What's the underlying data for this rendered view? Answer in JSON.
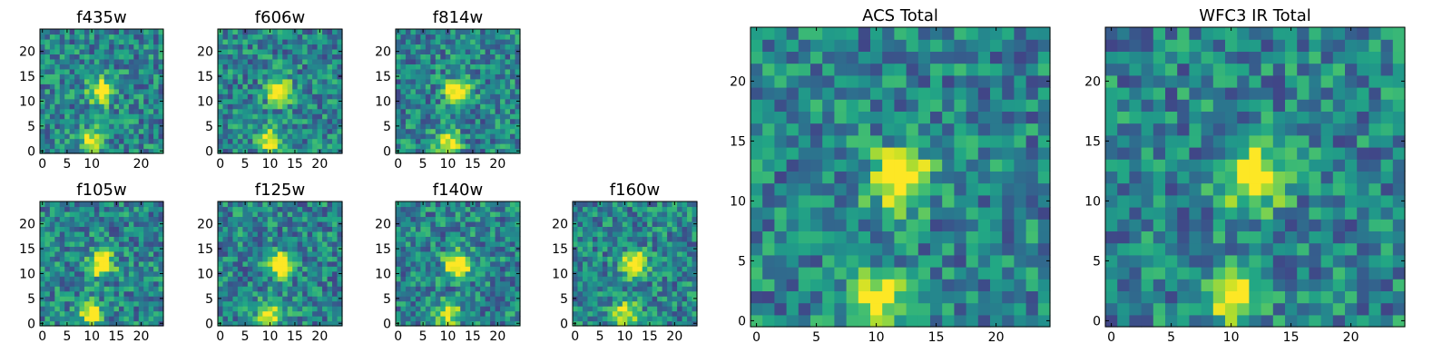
{
  "chart_data": [
    {
      "type": "heatmap",
      "title": "f435w",
      "xlim": [
        0,
        24
      ],
      "ylim": [
        0,
        24
      ],
      "xticks": [
        "0",
        "5",
        "10",
        "20"
      ],
      "yticks": [
        "0",
        "5",
        "10",
        "15",
        "20"
      ],
      "colormap": "viridis",
      "grid": false,
      "sources": [
        {
          "x": 12,
          "y": 12,
          "amplitude": 0.8
        },
        {
          "x": 10,
          "y": 2,
          "amplitude": 0.6
        }
      ]
    },
    {
      "type": "heatmap",
      "title": "f606w",
      "xlim": [
        0,
        24
      ],
      "ylim": [
        0,
        24
      ],
      "xticks": [
        "0",
        "5",
        "10",
        "15",
        "20"
      ],
      "yticks": [
        "0",
        "5",
        "10",
        "15",
        "20"
      ],
      "colormap": "viridis",
      "grid": false,
      "sources": [
        {
          "x": 12,
          "y": 12,
          "amplitude": 0.8
        },
        {
          "x": 10,
          "y": 2,
          "amplitude": 0.6
        }
      ]
    },
    {
      "type": "heatmap",
      "title": "f814w",
      "xlim": [
        0,
        24
      ],
      "ylim": [
        0,
        24
      ],
      "xticks": [
        "0",
        "5",
        "10",
        "15",
        "20"
      ],
      "yticks": [
        "0",
        "5",
        "10",
        "15",
        "20"
      ],
      "colormap": "viridis",
      "grid": false,
      "sources": [
        {
          "x": 12,
          "y": 12,
          "amplitude": 0.8
        },
        {
          "x": 10,
          "y": 2,
          "amplitude": 0.6
        }
      ]
    },
    {
      "type": "heatmap",
      "title": "f105w",
      "xlim": [
        0,
        24
      ],
      "ylim": [
        0,
        24
      ],
      "xticks": [
        "0",
        "5",
        "10",
        "15",
        "20"
      ],
      "yticks": [
        "0",
        "5",
        "10",
        "15",
        "20"
      ],
      "colormap": "viridis",
      "grid": false,
      "sources": [
        {
          "x": 12,
          "y": 12,
          "amplitude": 0.8
        },
        {
          "x": 10,
          "y": 2,
          "amplitude": 0.6
        }
      ]
    },
    {
      "type": "heatmap",
      "title": "f125w",
      "xlim": [
        0,
        24
      ],
      "ylim": [
        0,
        24
      ],
      "xticks": [
        "0",
        "5",
        "10",
        "15",
        "20"
      ],
      "yticks": [
        "0",
        "5",
        "10",
        "15",
        "20"
      ],
      "colormap": "viridis",
      "grid": false,
      "sources": [
        {
          "x": 12,
          "y": 12,
          "amplitude": 0.8
        },
        {
          "x": 10,
          "y": 2,
          "amplitude": 0.6
        }
      ]
    },
    {
      "type": "heatmap",
      "title": "f140w",
      "xlim": [
        0,
        24
      ],
      "ylim": [
        0,
        24
      ],
      "xticks": [
        "0",
        "5",
        "10",
        "15",
        "20"
      ],
      "yticks": [
        "0",
        "5",
        "10",
        "15",
        "20"
      ],
      "colormap": "viridis",
      "grid": false,
      "sources": [
        {
          "x": 12,
          "y": 12,
          "amplitude": 0.8
        },
        {
          "x": 10,
          "y": 2,
          "amplitude": 0.6
        }
      ]
    },
    {
      "type": "heatmap",
      "title": "f160w",
      "xlim": [
        0,
        24
      ],
      "ylim": [
        0,
        24
      ],
      "xticks": [
        "0",
        "5",
        "10",
        "15",
        "20"
      ],
      "yticks": [
        "0",
        "5",
        "10",
        "15",
        "20"
      ],
      "colormap": "viridis",
      "grid": false,
      "sources": [
        {
          "x": 12,
          "y": 12,
          "amplitude": 0.8
        },
        {
          "x": 10,
          "y": 2,
          "amplitude": 0.6
        }
      ]
    },
    {
      "type": "heatmap",
      "title": "ACS Total",
      "xlim": [
        0,
        24
      ],
      "ylim": [
        0,
        24
      ],
      "xticks": [
        "0",
        "5",
        "10",
        "15",
        "20"
      ],
      "yticks": [
        "0",
        "5",
        "10",
        "15",
        "20"
      ],
      "colormap": "viridis",
      "grid": false,
      "sources": [
        {
          "x": 12,
          "y": 12,
          "amplitude": 0.8
        },
        {
          "x": 10,
          "y": 2,
          "amplitude": 0.6
        }
      ]
    },
    {
      "type": "heatmap",
      "title": "WFC3 IR Total",
      "xlim": [
        0,
        24
      ],
      "ylim": [
        0,
        24
      ],
      "xticks": [
        "0",
        "5",
        "10",
        "15",
        "20"
      ],
      "yticks": [
        "0",
        "5",
        "10",
        "15",
        "20"
      ],
      "colormap": "viridis",
      "grid": false,
      "sources": [
        {
          "x": 12,
          "y": 12,
          "amplitude": 0.8
        },
        {
          "x": 10,
          "y": 2,
          "amplitude": 0.6
        }
      ]
    }
  ]
}
